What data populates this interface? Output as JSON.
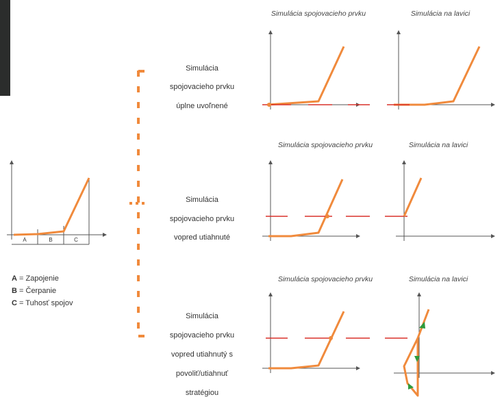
{
  "header": {
    "column_1": "Simulácia spojovacieho prvku",
    "column_2": "Simulácia na lavici"
  },
  "phase_chart": {
    "segments": [
      "A",
      "B",
      "C"
    ]
  },
  "legend": [
    {
      "key": "A",
      "text": "= Zapojenie"
    },
    {
      "key": "B",
      "text": "= Čerpanie"
    },
    {
      "key": "C",
      "text": "= Tuhosť spojov"
    }
  ],
  "rows": [
    {
      "label": [
        "Simulácia",
        "spojovacieho prvku",
        "úplne uvoľnené"
      ]
    },
    {
      "label": [
        "Simulácia",
        "spojovacieho prvku",
        "vopred utiahnuté"
      ]
    },
    {
      "label": [
        "Simulácia",
        "spojovacieho prvku",
        "vopred utiahnutý s",
        "povoliť/utiahnuť",
        "stratégiou"
      ]
    }
  ]
}
